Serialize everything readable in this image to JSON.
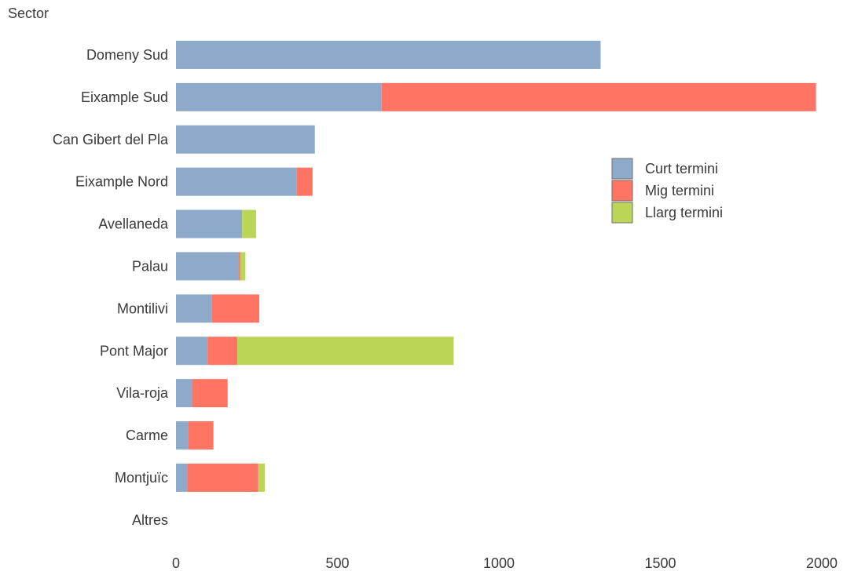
{
  "chart_data": {
    "type": "bar",
    "orientation": "horizontal",
    "stacked": true,
    "ylabel": "Sector",
    "xlabel": "",
    "categories": [
      "Domeny Sud",
      "Eixample Sud",
      "Can Gibert del Pla",
      "Eixample Nord",
      "Avellaneda",
      "Palau",
      "Montilivi",
      "Pont Major",
      "Vila-roja",
      "Carme",
      "Montjuïc",
      "Altres"
    ],
    "series": [
      {
        "name": "Curt termini",
        "color": "#8eaacb",
        "values": [
          1315,
          637,
          430,
          373,
          205,
          195,
          110,
          98,
          50,
          38,
          35,
          0
        ]
      },
      {
        "name": "Mig termini",
        "color": "#ff7462",
        "values": [
          0,
          1345,
          0,
          50,
          0,
          5,
          148,
          92,
          110,
          78,
          220,
          0
        ]
      },
      {
        "name": "Llarg termini",
        "color": "#bbd657",
        "values": [
          0,
          0,
          0,
          0,
          43,
          15,
          0,
          670,
          0,
          0,
          20,
          0
        ]
      }
    ],
    "xlim": [
      0,
      2000
    ],
    "xticks": [
      0,
      500,
      1000,
      1500,
      2000
    ],
    "grid": false,
    "legend_position": "right"
  }
}
